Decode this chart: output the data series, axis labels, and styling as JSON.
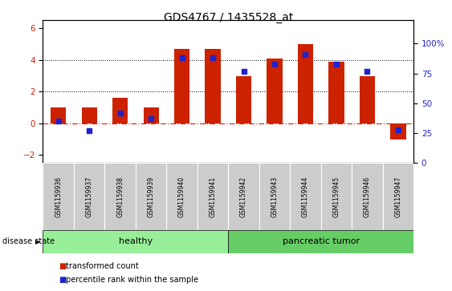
{
  "title": "GDS4767 / 1435528_at",
  "samples": [
    "GSM1159936",
    "GSM1159937",
    "GSM1159938",
    "GSM1159939",
    "GSM1159940",
    "GSM1159941",
    "GSM1159942",
    "GSM1159943",
    "GSM1159944",
    "GSM1159945",
    "GSM1159946",
    "GSM1159947"
  ],
  "transformed_count": [
    1.0,
    1.0,
    1.6,
    1.0,
    4.7,
    4.7,
    3.0,
    4.1,
    5.0,
    3.9,
    3.0,
    -1.0
  ],
  "percentile_rank": [
    35,
    27,
    42,
    37,
    88,
    88,
    77,
    83,
    91,
    83,
    77,
    28
  ],
  "left_ylim": [
    -2.5,
    6.5
  ],
  "right_ylim": [
    0,
    119.44
  ],
  "left_yticks": [
    -2,
    0,
    2,
    4,
    6
  ],
  "right_yticks": [
    0,
    25,
    50,
    75,
    100
  ],
  "right_yticklabels": [
    "0",
    "25",
    "50",
    "75",
    "100%"
  ],
  "bar_color": "#cc2200",
  "dot_color": "#2222cc",
  "healthy_color": "#99ee99",
  "tumor_color": "#66cc66",
  "healthy_samples": 6,
  "tumor_samples": 6,
  "group_label_healthy": "healthy",
  "group_label_tumor": "pancreatic tumor",
  "disease_state_label": "disease state",
  "legend_items": [
    "transformed count",
    "percentile rank within the sample"
  ],
  "grid_values": [
    2,
    4
  ],
  "zero_line_color": "#cc2200",
  "background_color": "#ffffff",
  "tick_label_area_color": "#cccccc",
  "bar_width": 0.5,
  "dot_size": 22
}
